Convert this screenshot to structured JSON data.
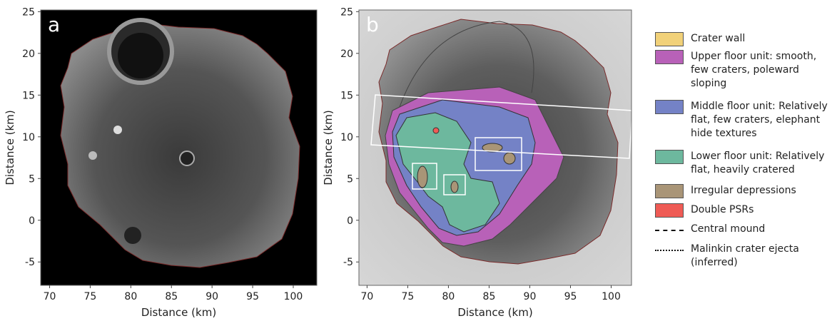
{
  "panels": [
    {
      "label": "a",
      "xlabel": "Distance (km)",
      "ylabel": "Distance (km)",
      "xlim": [
        68.9,
        102.9
      ],
      "ylim": [
        -7.8,
        25.2
      ],
      "xticks": [
        70,
        75,
        80,
        85,
        90,
        95,
        100
      ],
      "yticks": [
        -5,
        0,
        5,
        10,
        15,
        20,
        25
      ]
    },
    {
      "label": "b",
      "xlabel": "Distance (km)",
      "ylabel": "Distance (km)",
      "xlim": [
        69.0,
        102.5
      ],
      "ylim": [
        -7.8,
        25.2
      ],
      "xticks": [
        70,
        75,
        80,
        85,
        90,
        95,
        100
      ],
      "yticks": [
        -5,
        0,
        5,
        10,
        15,
        20,
        25
      ]
    }
  ],
  "legend": [
    {
      "label": "Crater wall",
      "color": "#f1d179",
      "kind": "fill"
    },
    {
      "label": "Upper floor unit: smooth, few craters, poleward sloping",
      "color": "#b861b8",
      "kind": "fill"
    },
    {
      "label": "Middle floor unit: Relatively flat, few craters, elephant hide textures",
      "color": "#7482c6",
      "kind": "fill"
    },
    {
      "label": "Lower floor unit: Relatively flat, heavily cratered",
      "color": "#6db89e",
      "kind": "fill"
    },
    {
      "label": "Irregular depressions",
      "color": "#a99577",
      "kind": "fill"
    },
    {
      "label": "Double PSRs",
      "color": "#ef5b55",
      "kind": "fill"
    },
    {
      "label": "Central mound",
      "color": "#111111",
      "kind": "dashed"
    },
    {
      "label": "Malinkin crater ejecta (inferred)",
      "color": "#111111",
      "kind": "dotted"
    }
  ]
}
